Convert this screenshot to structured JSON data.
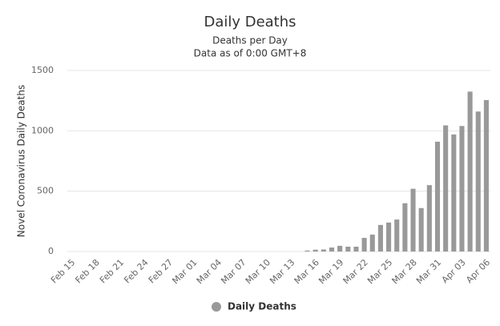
{
  "chart_data": {
    "type": "bar",
    "title": "Daily Deaths",
    "subtitle": [
      "Deaths per Day",
      "Data as of 0:00 GMT+8"
    ],
    "y_label": "Novel Coronavirus Daily Deaths",
    "categories": [
      "Feb 15",
      null,
      null,
      "Feb 18",
      null,
      null,
      "Feb 21",
      null,
      null,
      "Feb 24",
      null,
      null,
      "Feb 27",
      null,
      null,
      "Mar 01",
      null,
      null,
      "Mar 04",
      null,
      null,
      "Mar 07",
      null,
      null,
      "Mar 10",
      null,
      null,
      "Mar 13",
      null,
      null,
      "Mar 16",
      null,
      null,
      "Mar 19",
      null,
      null,
      "Mar 22",
      null,
      null,
      "Mar 25",
      null,
      null,
      "Mar 28",
      null,
      null,
      "Mar 31",
      null,
      null,
      "Apr 03",
      null,
      null,
      "Apr 06"
    ],
    "series": [
      {
        "name": "Daily Deaths",
        "color": "#999999",
        "values": [
          0,
          0,
          0,
          0,
          0,
          0,
          0,
          0,
          0,
          0,
          0,
          0,
          0,
          0,
          0,
          0,
          0,
          0,
          0,
          0,
          0,
          0,
          0,
          0,
          0,
          0,
          0,
          0,
          0,
          8,
          15,
          17,
          33,
          47,
          40,
          40,
          113,
          140,
          220,
          240,
          265,
          400,
          520,
          360,
          550,
          910,
          1045,
          970,
          1040,
          1325,
          1160,
          1255
        ]
      }
    ],
    "ylim": [
      0,
      1500
    ],
    "yticks": [
      0,
      500,
      1000,
      1500
    ],
    "grid": true,
    "legend": "bottom"
  }
}
